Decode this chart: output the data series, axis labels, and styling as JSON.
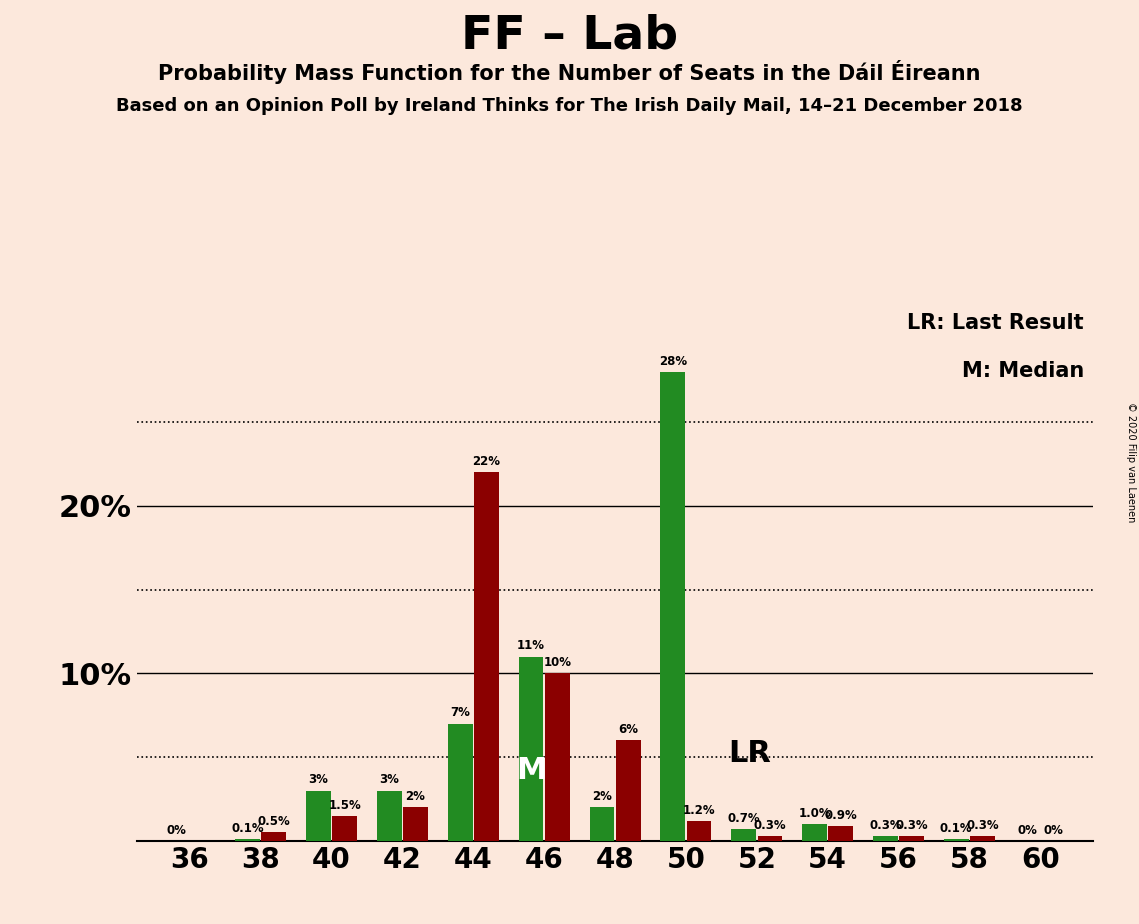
{
  "title": "FF – Lab",
  "subtitle1": "Probability Mass Function for the Number of Seats in the Dáil Éireann",
  "subtitle2": "Based on an Opinion Poll by Ireland Thinks for The Irish Daily Mail, 14–21 December 2018",
  "copyright": "© 2020 Filip van Laenen",
  "legend_lr": "LR: Last Result",
  "legend_m": "M: Median",
  "background_color": "#fce8dc",
  "green_color": "#228B22",
  "red_color": "#8B0000",
  "seats": [
    36,
    38,
    40,
    42,
    44,
    46,
    48,
    50,
    52,
    54,
    56,
    58,
    60
  ],
  "green_values": [
    0.0,
    0.1,
    3.0,
    3.0,
    7.0,
    11.0,
    2.0,
    28.0,
    0.7,
    1.0,
    0.3,
    0.1,
    0.0
  ],
  "red_values": [
    0.0,
    0.5,
    1.5,
    2.0,
    22.0,
    10.0,
    6.0,
    1.2,
    0.3,
    0.9,
    0.3,
    0.3,
    0.0
  ],
  "bar_labels_green": [
    "0%",
    "0.1%",
    "3%",
    "3%",
    "7%",
    "11%",
    "2%",
    "28%",
    "0.7%",
    "1.0%",
    "0.3%",
    "0.1%",
    "0%"
  ],
  "bar_labels_red": [
    "",
    "0.5%",
    "1.5%",
    "2%",
    "22%",
    "10%",
    "6%",
    "1.2%",
    "0.3%",
    "0.9%",
    "0.3%",
    "0.3%",
    "0%"
  ],
  "xtick_positions": [
    36,
    38,
    40,
    42,
    44,
    46,
    48,
    50,
    52,
    54,
    56,
    58,
    60
  ],
  "ylim": [
    0,
    32
  ],
  "median_seat": 46,
  "last_result_seat": 51,
  "solid_grid_lines": [
    10,
    20
  ],
  "dotted_grid_lines": [
    5,
    15,
    25
  ],
  "ylabel_values": [
    10,
    20
  ],
  "ylabel_labels": [
    "10%",
    "20%"
  ],
  "bar_width": 0.7
}
